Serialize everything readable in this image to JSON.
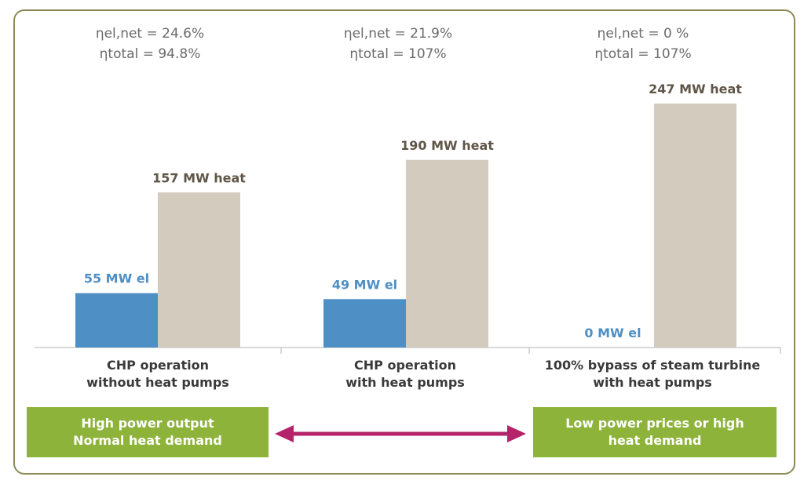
{
  "chart_data": {
    "type": "bar",
    "categories": [
      [
        "CHP operation",
        "without heat pumps"
      ],
      [
        "CHP operation",
        "with heat pumps"
      ],
      [
        "100% bypass of steam turbine",
        "with heat pumps"
      ]
    ],
    "series": [
      {
        "color": "#4e8fc5",
        "values": [
          55,
          49,
          0
        ],
        "labels": [
          "55 MW el",
          "49 MW el",
          "0 MW el"
        ]
      },
      {
        "color": "#d3cbbd",
        "values": [
          157,
          190,
          247
        ],
        "labels": [
          "157 MW heat",
          "190 MW heat",
          "247 MW heat"
        ]
      }
    ],
    "efficiencies": [
      [
        "ηel,net = 24.6%",
        "ηtotal = 94.8%"
      ],
      [
        "ηel,net = 21.9%",
        "ηtotal = 107%"
      ],
      [
        "ηel,net = 0 %",
        "ηtotal = 107%"
      ]
    ],
    "label_colors": {
      "el": "#4e8fc5",
      "heat": "#5f5648"
    }
  },
  "boxes": {
    "left": [
      "High power output",
      "Normal heat demand"
    ],
    "right": [
      "Low power prices or high",
      "heat demand"
    ]
  },
  "colors": {
    "box": "#8db33a",
    "arrow": "#b5236b",
    "frame": "#8e8a55"
  }
}
